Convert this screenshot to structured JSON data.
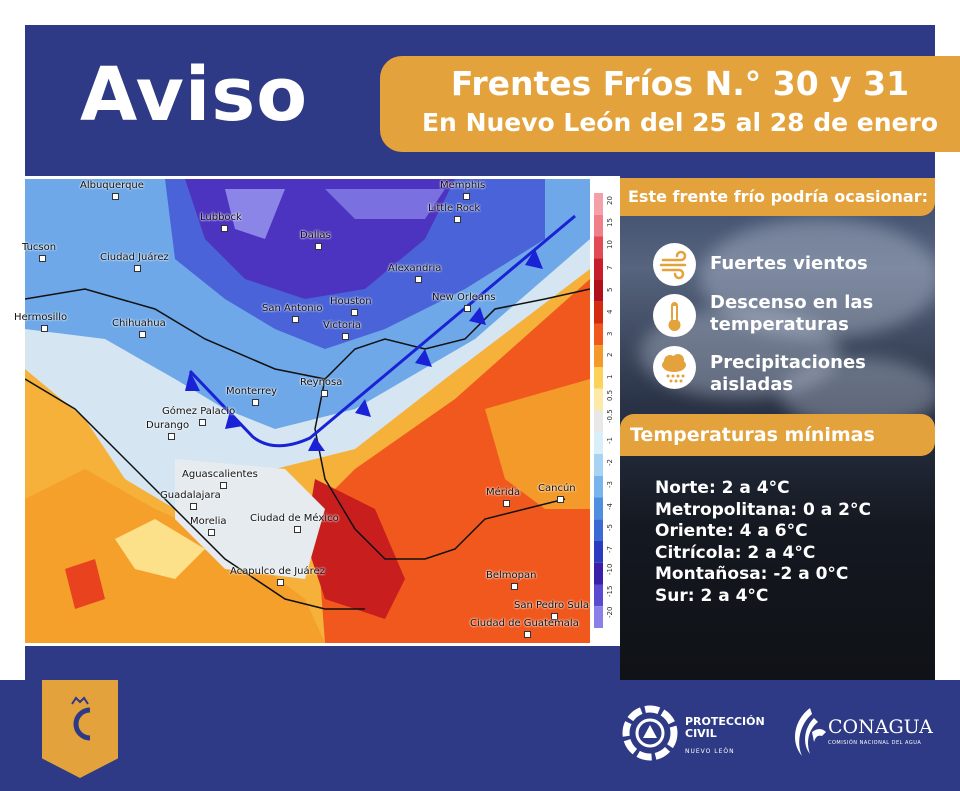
{
  "header": {
    "title": "Aviso",
    "banner_line1": "Frentes Fríos  N.° 30 y 31",
    "banner_line2": "En Nuevo León del 25 al 28 de enero"
  },
  "map": {
    "cities": [
      "Albuquerque",
      "Memphis",
      "Lubbock",
      "Little Rock",
      "Dallas",
      "Tucson",
      "Ciudad Juárez",
      "Alexandria",
      "Houston",
      "San Antonio",
      "New Orleans",
      "Victoria",
      "Hermosillo",
      "Chihuahua",
      "Monterrey",
      "Reynosa",
      "Gómez Palacio",
      "Durango",
      "Aguascalientes",
      "Guadalajara",
      "Morelia",
      "Ciudad de México",
      "Mérida",
      "Cancún",
      "Acapulco de Juárez",
      "Belmopan",
      "San Pedro Sula",
      "Ciudad de Guatemala"
    ],
    "colorbar_ticks": [
      "20",
      "15",
      "10",
      "7",
      "5",
      "4",
      "3",
      "2",
      "1",
      "0.5",
      "-0.5",
      "-1",
      "-2",
      "-3",
      "-4",
      "-5",
      "-7",
      "-10",
      "-15",
      "-20"
    ]
  },
  "effects": {
    "heading": "Este frente  frío podría ocasionar:",
    "items": [
      {
        "icon": "wind-icon",
        "label": "Fuertes vientos"
      },
      {
        "icon": "thermometer-icon",
        "label": "Descenso en las temperaturas"
      },
      {
        "icon": "rain-cloud-icon",
        "label": "Precipitaciones aisladas"
      }
    ]
  },
  "temperatures": {
    "heading": "Temperaturas mínimas",
    "items": [
      "Norte: 2 a 4°C",
      "Metropolitana: 0 a 2°C",
      "Oriente: 4 a 6°C",
      "Citrícola: 2 a 4°C",
      "Montañosa: -2 a 0°C",
      "Sur: 2 a 4°C"
    ]
  },
  "footer": {
    "pc_line1": "PROTECCIÓN",
    "pc_line2": "CIVIL",
    "pc_sub": "NUEVO LEÓN",
    "conagua": "CONAGUA",
    "conagua_sub": "COMISIÓN NACIONAL DEL AGUA"
  },
  "colors": {
    "navy": "#2e3a85",
    "gold": "#e3a23c",
    "front": "#1a22d6"
  }
}
